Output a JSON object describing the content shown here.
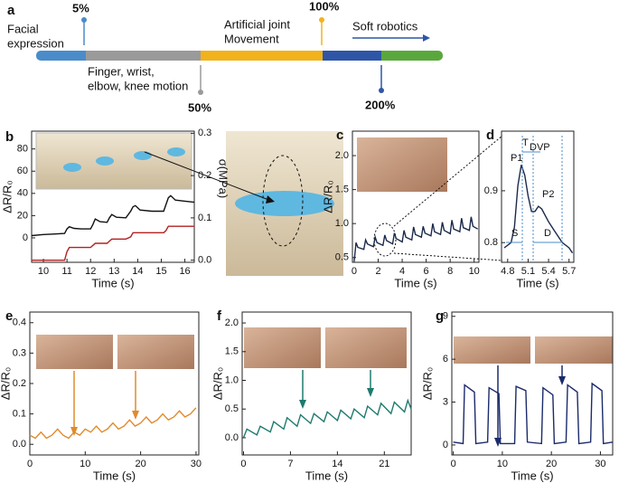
{
  "timeline": {
    "panel": "a",
    "stages": [
      [
        "Facial",
        "expression"
      ],
      [
        "Finger, wrist,",
        "elbow, knee motion"
      ],
      [
        "Artificial joint",
        "Movement"
      ],
      [
        "Soft robotics"
      ]
    ],
    "markers": [
      "5%",
      "50%",
      "100%",
      "200%"
    ]
  },
  "chart_data": [
    {
      "type": "line",
      "panel": "b",
      "x_label": "Time (s)",
      "y_label": "ΔR/R₀",
      "y2_label": "σ(MPa)",
      "xlim": [
        9.5,
        16.4
      ],
      "xticks": [
        10,
        11,
        12,
        13,
        14,
        15,
        16
      ],
      "ylim": [
        -22,
        96
      ],
      "yticks": [
        0,
        20,
        40,
        60,
        80
      ],
      "y2lim": [
        -0.005,
        0.305
      ],
      "y2ticks": [
        {
          "value": 0,
          "label": "0.0"
        },
        0.1,
        0.2,
        0.3
      ],
      "x": [
        9.5,
        10.0,
        10.5,
        10.9,
        11.0,
        11.1,
        11.3,
        11.6,
        12.0,
        12.1,
        12.2,
        12.4,
        12.7,
        12.8,
        12.9,
        13.1,
        13.5,
        13.7,
        13.8,
        13.9,
        14.1,
        14.6,
        15.1,
        15.2,
        15.3,
        15.4,
        15.6,
        16.0,
        16.4
      ],
      "series": [
        {
          "color": "#111111",
          "values": [
            2,
            3,
            3.5,
            4,
            8,
            10,
            8.5,
            8,
            8,
            12,
            17,
            14.5,
            14,
            18,
            21,
            18.5,
            18,
            24,
            28,
            29,
            25,
            24,
            24,
            30,
            36,
            38,
            34,
            33,
            32
          ]
        },
        {
          "color": "#b22222",
          "axis": "y2",
          "values": [
            0,
            0,
            0,
            0,
            0.02,
            0.03,
            0.03,
            0.03,
            0.03,
            0.035,
            0.04,
            0.04,
            0.04,
            0.045,
            0.05,
            0.05,
            0.05,
            0.055,
            0.065,
            0.065,
            0.065,
            0.065,
            0.065,
            0.07,
            0.08,
            0.08,
            0.08,
            0.08,
            0.08
          ]
        }
      ]
    },
    {
      "type": "line",
      "panel": "c",
      "x_label": "Time (s)",
      "y_label": "ΔR/R₀",
      "xlim": [
        -0.15,
        10.4
      ],
      "xticks": [
        0,
        2,
        4,
        6,
        8,
        10
      ],
      "ylim": [
        0.43,
        2.36
      ],
      "yticks": [
        0.5,
        {
          "value": 1,
          "label": "1.0"
        },
        1.5,
        {
          "value": 2,
          "label": "2.0"
        }
      ],
      "x": [
        0,
        0.15,
        0.3,
        0.8,
        0.95,
        1.1,
        1.6,
        1.75,
        1.9,
        2.4,
        2.55,
        2.7,
        3.2,
        3.35,
        3.5,
        4.0,
        4.15,
        4.3,
        4.8,
        4.95,
        5.1,
        5.6,
        5.75,
        5.9,
        6.4,
        6.55,
        6.7,
        7.2,
        7.35,
        7.5,
        8.0,
        8.15,
        8.3,
        8.8,
        8.95,
        9.1,
        9.6,
        9.75,
        9.9,
        10.3
      ],
      "series": [
        {
          "color": "#1b2a4a",
          "values": [
            0.45,
            0.72,
            0.65,
            0.62,
            0.76,
            0.7,
            0.66,
            0.8,
            0.72,
            0.68,
            0.83,
            0.75,
            0.7,
            0.86,
            0.78,
            0.73,
            0.9,
            0.8,
            0.76,
            0.95,
            0.84,
            0.8,
            0.96,
            0.86,
            0.82,
            1.0,
            0.88,
            0.84,
            1.02,
            0.9,
            0.85,
            1.05,
            0.92,
            0.88,
            1.08,
            0.94,
            0.9,
            1.1,
            0.96,
            0.92
          ]
        }
      ]
    },
    {
      "type": "line",
      "panel": "d",
      "x_label": "Time (s)",
      "xlim": [
        4.71,
        5.77
      ],
      "xticks": [
        4.8,
        5.1,
        5.4,
        5.7
      ],
      "ylim": [
        0.762,
        1.015
      ],
      "yticks": [
        0.8,
        0.9
      ],
      "annotations": [
        "P1",
        "P2",
        "T",
        "DVP",
        "S",
        "D"
      ],
      "x": [
        4.75,
        4.85,
        4.9,
        4.95,
        5.0,
        5.05,
        5.1,
        5.15,
        5.2,
        5.25,
        5.3,
        5.4,
        5.5,
        5.6,
        5.7,
        5.75
      ],
      "series": [
        {
          "color": "#1b2a4a",
          "values": [
            0.79,
            0.8,
            0.83,
            0.91,
            0.95,
            0.93,
            0.89,
            0.86,
            0.86,
            0.87,
            0.865,
            0.84,
            0.82,
            0.8,
            0.79,
            0.78
          ]
        }
      ]
    },
    {
      "type": "line",
      "panel": "e",
      "x_label": "Time (s)",
      "y_label": "ΔR/R₀",
      "xlim": [
        0,
        30.5
      ],
      "xticks": [
        0,
        10,
        20,
        30
      ],
      "ylim": [
        -0.035,
        0.435
      ],
      "yticks": [
        {
          "value": 0,
          "label": "0.0"
        },
        0.1,
        0.2,
        0.3,
        0.4
      ],
      "x": [
        0,
        1,
        2,
        3,
        4,
        5,
        6,
        7,
        8,
        9,
        10,
        11,
        12,
        13,
        14,
        15,
        16,
        17,
        18,
        19,
        20,
        21,
        22,
        23,
        24,
        25,
        26,
        27,
        28,
        29,
        30
      ],
      "series": [
        {
          "color": "#e08a2e",
          "values": [
            0.03,
            0.02,
            0.04,
            0.02,
            0.03,
            0.05,
            0.03,
            0.02,
            0.04,
            0.03,
            0.05,
            0.04,
            0.06,
            0.04,
            0.05,
            0.07,
            0.05,
            0.06,
            0.08,
            0.06,
            0.07,
            0.09,
            0.07,
            0.08,
            0.1,
            0.08,
            0.09,
            0.11,
            0.09,
            0.1,
            0.12
          ]
        }
      ]
    },
    {
      "type": "line",
      "panel": "f",
      "x_label": "Time (s)",
      "y_label": "ΔR/R₀",
      "xlim": [
        -0.2,
        25
      ],
      "xticks": [
        0,
        7,
        14,
        21
      ],
      "ylim": [
        -0.3,
        2.19
      ],
      "yticks": [
        {
          "value": 0,
          "label": "0.0"
        },
        0.5,
        {
          "value": 1,
          "label": "1.0"
        },
        1.5,
        {
          "value": 2,
          "label": "2.0"
        }
      ],
      "x": [
        0,
        0.5,
        2,
        2.5,
        4,
        4.5,
        6,
        6.5,
        8,
        8.5,
        10,
        10.5,
        12,
        12.5,
        14,
        14.5,
        16,
        16.5,
        18,
        18.5,
        20,
        20.5,
        22,
        22.5,
        24,
        24.5,
        25
      ],
      "series": [
        {
          "color": "#1f7a6e",
          "values": [
            0.0,
            0.15,
            0.05,
            0.2,
            0.1,
            0.28,
            0.15,
            0.35,
            0.2,
            0.4,
            0.25,
            0.42,
            0.28,
            0.45,
            0.3,
            0.48,
            0.33,
            0.5,
            0.35,
            0.55,
            0.4,
            0.6,
            0.42,
            0.62,
            0.45,
            0.65,
            0.5
          ]
        }
      ]
    },
    {
      "type": "line",
      "panel": "g",
      "x_label": "Time (s)",
      "y_label": "ΔR/R₀",
      "xlim": [
        -0.3,
        32.5
      ],
      "xticks": [
        0,
        10,
        20,
        30
      ],
      "ylim": [
        -0.7,
        9.3
      ],
      "yticks": [
        0,
        3,
        6,
        9
      ],
      "x": [
        0,
        2,
        2.3,
        4.3,
        4.6,
        7,
        7.3,
        9.3,
        9.6,
        12.5,
        12.8,
        14.8,
        15.1,
        18,
        18.3,
        20.3,
        20.6,
        23,
        23.3,
        25.3,
        25.6,
        28,
        28.3,
        30.3,
        30.6,
        32.5
      ],
      "series": [
        {
          "color": "#1b2a6b",
          "values": [
            0.2,
            0.1,
            4.2,
            3.7,
            0.1,
            0.2,
            4.0,
            3.6,
            0.1,
            0.1,
            4.1,
            3.8,
            0.2,
            0.1,
            4.0,
            3.5,
            0.1,
            0.2,
            4.2,
            3.7,
            0.1,
            0.2,
            4.3,
            3.8,
            0.1,
            0.2
          ]
        }
      ]
    }
  ]
}
